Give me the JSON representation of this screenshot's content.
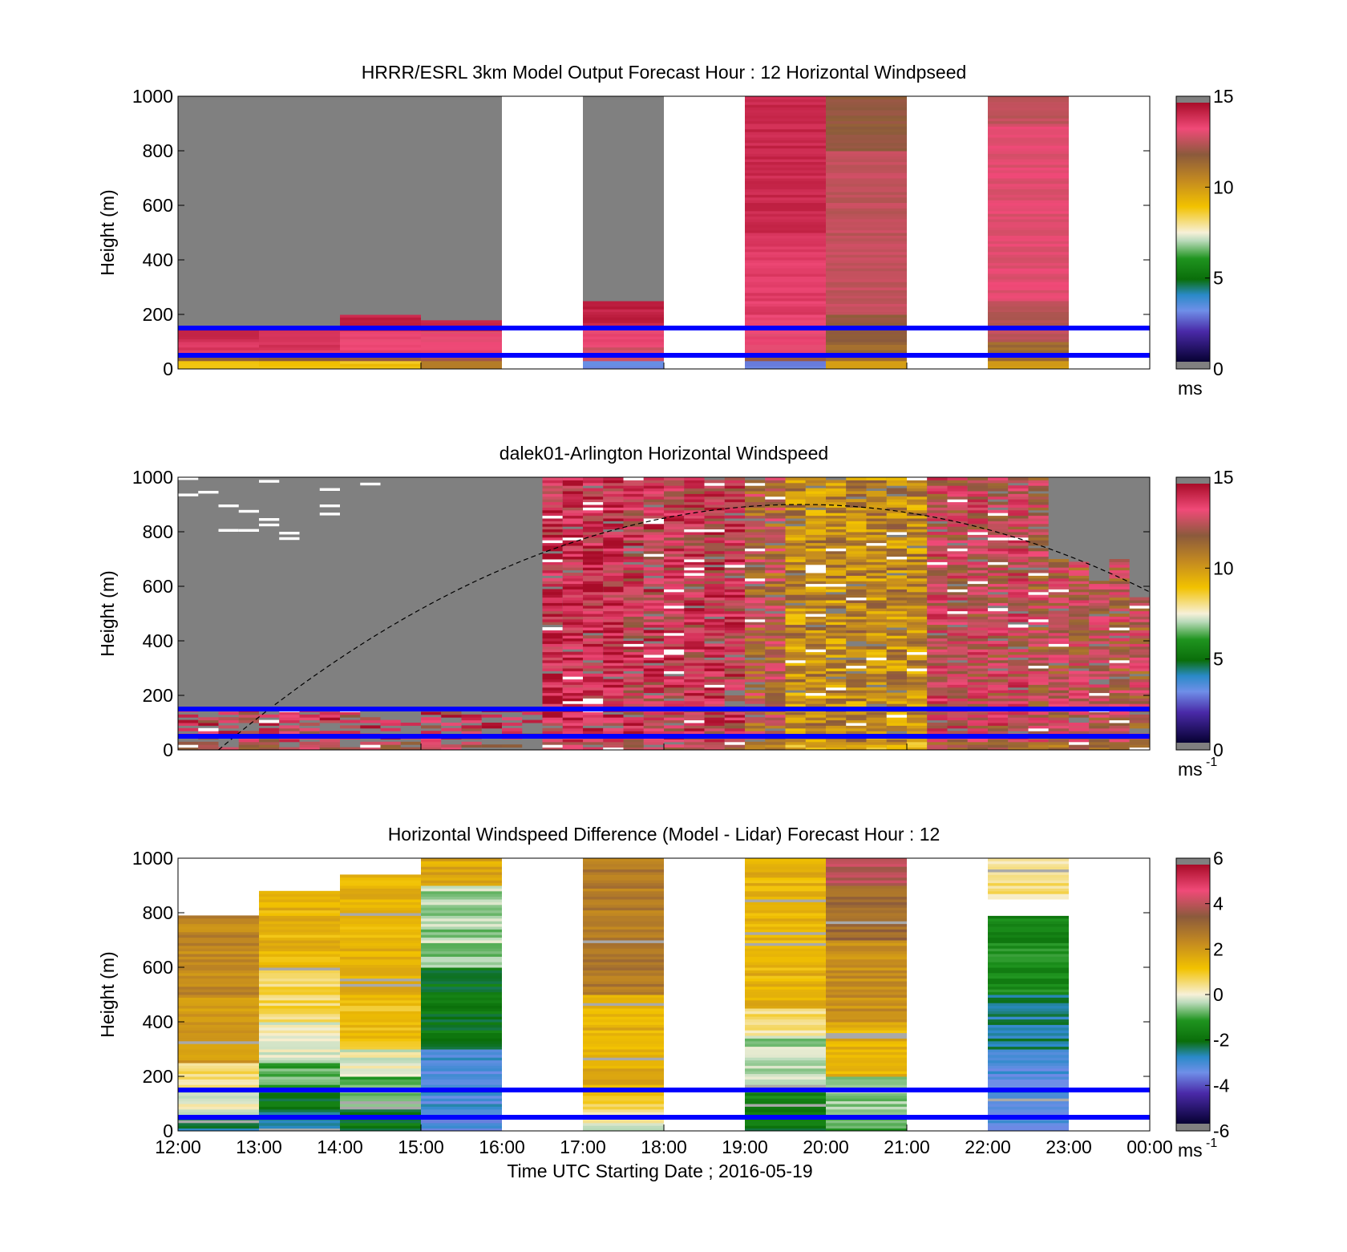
{
  "chart_data": [
    {
      "type": "heatmap",
      "title": "HRRR/ESRL 3km Model Output   Forecast Hour : 12 Horizontal Windpseed",
      "ylabel": "Height (m)",
      "ylim": [
        0,
        1000
      ],
      "y_ticks": [
        "0",
        "200",
        "400",
        "600",
        "800",
        "1000"
      ],
      "xlim_hours": [
        12,
        24
      ],
      "colorbar": {
        "range": [
          0,
          15
        ],
        "ticks": [
          "0",
          "5",
          "10",
          "15"
        ],
        "unit": "ms"
      },
      "reference_lines_m": [
        50,
        150
      ],
      "data": {
        "hour_columns": [
          12,
          13,
          14,
          15,
          17,
          19,
          20,
          22
        ],
        "columns": [
          {
            "start": 12,
            "end": 13,
            "top_m": 1000,
            "profile": [
              [
                0,
                30,
                9
              ],
              [
                30,
                60,
                12
              ],
              [
                60,
                110,
                14
              ],
              [
                110,
                160,
                14.5
              ],
              [
                160,
                1000,
                0
              ]
            ]
          },
          {
            "start": 13,
            "end": 14,
            "top_m": 1000,
            "profile": [
              [
                0,
                30,
                9
              ],
              [
                30,
                60,
                12
              ],
              [
                60,
                160,
                14
              ],
              [
                160,
                1000,
                0
              ]
            ]
          },
          {
            "start": 14,
            "end": 15,
            "top_m": 1000,
            "profile": [
              [
                0,
                30,
                9
              ],
              [
                30,
                60,
                12
              ],
              [
                60,
                140,
                13.5
              ],
              [
                140,
                200,
                14.5
              ],
              [
                200,
                1000,
                0
              ]
            ]
          },
          {
            "start": 15,
            "end": 16,
            "top_m": 1000,
            "profile": [
              [
                0,
                30,
                11
              ],
              [
                30,
                60,
                12.5
              ],
              [
                60,
                140,
                13.5
              ],
              [
                140,
                180,
                14.5
              ],
              [
                180,
                1000,
                0
              ]
            ]
          },
          {
            "start": 17,
            "end": 18,
            "top_m": 1000,
            "profile": [
              [
                0,
                30,
                3
              ],
              [
                30,
                80,
                13
              ],
              [
                80,
                160,
                13.5
              ],
              [
                160,
                250,
                14.5
              ],
              [
                250,
                1000,
                0
              ]
            ]
          },
          {
            "start": 19,
            "end": 20,
            "top_m": 1000,
            "profile": [
              [
                0,
                30,
                3
              ],
              [
                30,
                60,
                12
              ],
              [
                60,
                200,
                13.5
              ],
              [
                200,
                500,
                13.8
              ],
              [
                500,
                1000,
                14.3
              ]
            ]
          },
          {
            "start": 20,
            "end": 21,
            "top_m": 1000,
            "profile": [
              [
                0,
                30,
                10
              ],
              [
                30,
                100,
                11.5
              ],
              [
                100,
                200,
                12
              ],
              [
                200,
                800,
                12.8
              ],
              [
                800,
                1000,
                12
              ]
            ]
          },
          {
            "start": 22,
            "end": 23,
            "top_m": 1000,
            "profile": [
              [
                0,
                30,
                10
              ],
              [
                30,
                100,
                11.5
              ],
              [
                100,
                250,
                12.7
              ],
              [
                250,
                900,
                13.3
              ],
              [
                900,
                1000,
                12.8
              ]
            ]
          }
        ]
      }
    },
    {
      "type": "heatmap",
      "title": "dalek01-Arlington  Horizontal Windspeed",
      "ylabel": "Height (m)",
      "ylim": [
        0,
        1000
      ],
      "y_ticks": [
        "0",
        "200",
        "400",
        "600",
        "800",
        "1000"
      ],
      "xlim_hours": [
        12,
        24
      ],
      "colorbar": {
        "range": [
          0,
          15
        ],
        "ticks": [
          "0",
          "5",
          "10",
          "15"
        ],
        "unit": "ms",
        "unit_exp": "-1"
      },
      "reference_lines_m": [
        50,
        150
      ],
      "solar_curve": {
        "start_hour": 12.5,
        "peak_hour": 19.7,
        "peak_m": 900,
        "end_hour": 24
      },
      "data": {
        "bin_hours": 0.25,
        "profile_top_m": [
          320,
          320,
          320,
          320,
          320,
          320,
          320,
          320,
          320,
          320,
          320,
          320,
          320,
          320,
          320,
          320,
          320,
          320,
          1000,
          1000,
          1000,
          1000,
          1000,
          1000,
          1000,
          1000,
          1000,
          1000,
          1000,
          1000,
          1000,
          1000,
          1000,
          1000,
          1000,
          1000,
          1000,
          1000,
          1000,
          1000,
          1000,
          1000,
          1000,
          700,
          700,
          620,
          700,
          560,
          540,
          400
        ],
        "segments": [
          {
            "start": 12,
            "end": 16.5,
            "fill": "low",
            "value": 13.5
          },
          {
            "start": 16.5,
            "end": 17.5,
            "fill": "full",
            "value": 14
          },
          {
            "start": 17.5,
            "end": 19,
            "fill": "full",
            "value": 13.5
          },
          {
            "start": 19,
            "end": 19.5,
            "fill": "full",
            "value": 12
          },
          {
            "start": 19.5,
            "end": 21.25,
            "fill": "full",
            "value": 10.5
          },
          {
            "start": 21.25,
            "end": 22.5,
            "fill": "full",
            "value": 13
          },
          {
            "start": 22.5,
            "end": 24,
            "fill": "full",
            "value": 12.5
          }
        ]
      }
    },
    {
      "type": "heatmap",
      "title": "Horizontal Windspeed Difference (Model - Lidar) Forecast Hour : 12",
      "ylabel": "Height (m)",
      "xlabel": "Time UTC  Starting Date ; 2016-05-19",
      "ylim": [
        0,
        1000
      ],
      "y_ticks": [
        "0",
        "200",
        "400",
        "600",
        "800",
        "1000"
      ],
      "x_ticks": [
        "12:00",
        "13:00",
        "14:00",
        "15:00",
        "16:00",
        "17:00",
        "18:00",
        "19:00",
        "20:00",
        "21:00",
        "22:00",
        "23:00",
        "00:00"
      ],
      "xlim_hours": [
        12,
        24
      ],
      "colorbar": {
        "range": [
          -6,
          6
        ],
        "ticks": [
          "-6",
          "-4",
          "-2",
          "0",
          "2",
          "4",
          "6"
        ],
        "unit": "ms",
        "unit_exp": "-1"
      },
      "reference_lines_m": [
        50,
        150
      ],
      "data": {
        "columns": [
          {
            "start": 12,
            "end": 13,
            "top_m": 790,
            "profile": [
              [
                0,
                50,
                -2.5
              ],
              [
                50,
                150,
                0
              ],
              [
                150,
                250,
                0.5
              ],
              [
                250,
                500,
                2
              ],
              [
                500,
                790,
                2.5
              ]
            ]
          },
          {
            "start": 13,
            "end": 14,
            "top_m": 880,
            "profile": [
              [
                0,
                80,
                -2.5
              ],
              [
                80,
                150,
                -2.0
              ],
              [
                150,
                250,
                -1
              ],
              [
                250,
                400,
                0
              ],
              [
                400,
                600,
                0.7
              ],
              [
                600,
                880,
                1.5
              ]
            ]
          },
          {
            "start": 14,
            "end": 15,
            "top_m": 940,
            "profile": [
              [
                0,
                80,
                -2
              ],
              [
                80,
                200,
                -1
              ],
              [
                200,
                300,
                0
              ],
              [
                300,
                500,
                1.2
              ],
              [
                500,
                940,
                1.5
              ]
            ]
          },
          {
            "start": 15,
            "end": 16,
            "top_m": 1000,
            "profile": [
              [
                0,
                80,
                -3.3
              ],
              [
                80,
                300,
                -3.2
              ],
              [
                300,
                600,
                -2
              ],
              [
                600,
                900,
                -0.5
              ],
              [
                900,
                1000,
                1.8
              ]
            ]
          },
          {
            "start": 17,
            "end": 18,
            "top_m": 1000,
            "profile": [
              [
                0,
                80,
                0
              ],
              [
                80,
                150,
                1
              ],
              [
                150,
                500,
                1.6
              ],
              [
                500,
                1000,
                2.8
              ]
            ]
          },
          {
            "start": 19,
            "end": 20,
            "top_m": 1000,
            "profile": [
              [
                0,
                80,
                -2
              ],
              [
                80,
                150,
                -1.5
              ],
              [
                150,
                350,
                -0.5
              ],
              [
                350,
                450,
                0.5
              ],
              [
                450,
                1000,
                1.5
              ]
            ]
          },
          {
            "start": 20,
            "end": 21,
            "top_m": 1000,
            "profile": [
              [
                0,
                80,
                -1
              ],
              [
                80,
                200,
                -0.5
              ],
              [
                200,
                400,
                1.5
              ],
              [
                400,
                700,
                2.3
              ],
              [
                700,
                900,
                3.2
              ],
              [
                900,
                1000,
                4.2
              ]
            ]
          },
          {
            "start": 22,
            "end": 23,
            "top_m": 1000,
            "profile": [
              [
                0,
                80,
                -3.3
              ],
              [
                80,
                300,
                -3.2
              ],
              [
                300,
                500,
                -2.6
              ],
              [
                500,
                790,
                -1.5
              ],
              [
                790,
                850,
                "nan"
              ],
              [
                850,
                1000,
                0.5
              ]
            ]
          }
        ]
      }
    }
  ]
}
